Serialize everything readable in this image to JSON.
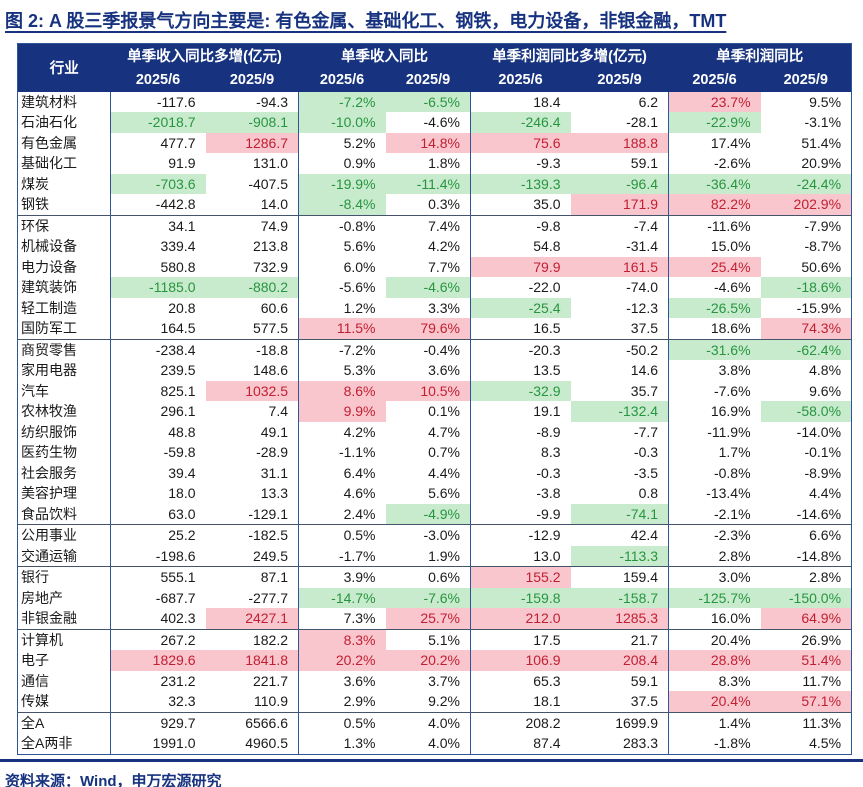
{
  "title": "图 2: A 股三季报景气方向主要是: 有色金属、基础化工、钢铁，电力设备，非银金融，TMT",
  "source": "资料来源：Wind，申万宏源研究",
  "colors": {
    "accent_navy": "#17337F",
    "border_blue": "#2F5597",
    "section_divider": "#44546A",
    "highlight_red_bg": "#F9C6CD",
    "highlight_red_text": "#C11F32",
    "highlight_green_bg": "#C8EBCE",
    "highlight_green_text": "#27953F"
  },
  "table": {
    "industry_header": "行业",
    "groups": [
      {
        "label": "单季收入同比多增(亿元)"
      },
      {
        "label": "单季收入同比"
      },
      {
        "label": "单季利润同比多增(亿元)"
      },
      {
        "label": "单季利润同比"
      }
    ],
    "period_headers": [
      "2025/6",
      "2025/9",
      "2025/6",
      "2025/9",
      "2025/6",
      "2025/9",
      "2025/6",
      "2025/9"
    ],
    "rows": [
      {
        "industry": "建筑材料",
        "values": [
          "-117.6",
          "-94.3",
          "-7.2%",
          "-6.5%",
          "18.4",
          "6.2",
          "23.7%",
          "9.5%"
        ],
        "highlights": "--gg--p-",
        "section_end": false
      },
      {
        "industry": "石油石化",
        "values": [
          "-2018.7",
          "-908.1",
          "-10.0%",
          "-4.6%",
          "-246.4",
          "-28.1",
          "-22.9%",
          "-3.1%"
        ],
        "highlights": "ggg-g-g-",
        "section_end": false
      },
      {
        "industry": "有色金属",
        "values": [
          "477.7",
          "1286.7",
          "5.2%",
          "14.8%",
          "75.6",
          "188.8",
          "17.4%",
          "51.4%"
        ],
        "highlights": "-p-ppp--",
        "section_end": false
      },
      {
        "industry": "基础化工",
        "values": [
          "91.9",
          "131.0",
          "0.9%",
          "1.8%",
          "-9.3",
          "59.1",
          "-2.6%",
          "20.9%"
        ],
        "highlights": "--------",
        "section_end": false
      },
      {
        "industry": "煤炭",
        "values": [
          "-703.6",
          "-407.5",
          "-19.9%",
          "-11.4%",
          "-139.3",
          "-96.4",
          "-36.4%",
          "-24.4%"
        ],
        "highlights": "g-gggggg",
        "section_end": false
      },
      {
        "industry": "钢铁",
        "values": [
          "-442.8",
          "14.0",
          "-8.4%",
          "0.3%",
          "35.0",
          "171.9",
          "82.2%",
          "202.9%"
        ],
        "highlights": "--g--ppp",
        "section_end": true
      },
      {
        "industry": "环保",
        "values": [
          "34.1",
          "74.9",
          "-0.8%",
          "7.4%",
          "-9.8",
          "-7.4",
          "-11.6%",
          "-7.9%"
        ],
        "highlights": "--------",
        "section_end": false
      },
      {
        "industry": "机械设备",
        "values": [
          "339.4",
          "213.8",
          "5.6%",
          "4.2%",
          "54.8",
          "-31.4",
          "15.0%",
          "-8.7%"
        ],
        "highlights": "--------",
        "section_end": false
      },
      {
        "industry": "电力设备",
        "values": [
          "580.8",
          "732.9",
          "6.0%",
          "7.7%",
          "79.9",
          "161.5",
          "25.4%",
          "50.6%"
        ],
        "highlights": "----ppp-",
        "section_end": false
      },
      {
        "industry": "建筑装饰",
        "values": [
          "-1185.0",
          "-880.2",
          "-5.6%",
          "-4.6%",
          "-22.0",
          "-74.0",
          "-4.6%",
          "-18.6%"
        ],
        "highlights": "gg-g---g",
        "section_end": false
      },
      {
        "industry": "轻工制造",
        "values": [
          "20.8",
          "60.6",
          "1.2%",
          "3.3%",
          "-25.4",
          "-12.3",
          "-26.5%",
          "-15.9%"
        ],
        "highlights": "----g-g-",
        "section_end": false
      },
      {
        "industry": "国防军工",
        "values": [
          "164.5",
          "577.5",
          "11.5%",
          "79.6%",
          "16.5",
          "37.5",
          "18.6%",
          "74.3%"
        ],
        "highlights": "--pp---p",
        "section_end": true
      },
      {
        "industry": "商贸零售",
        "values": [
          "-238.4",
          "-18.8",
          "-7.2%",
          "-0.4%",
          "-20.3",
          "-50.2",
          "-31.6%",
          "-62.4%"
        ],
        "highlights": "------gg",
        "section_end": false
      },
      {
        "industry": "家用电器",
        "values": [
          "239.5",
          "148.6",
          "5.3%",
          "3.6%",
          "13.5",
          "14.6",
          "3.8%",
          "4.8%"
        ],
        "highlights": "--------",
        "section_end": false
      },
      {
        "industry": "汽车",
        "values": [
          "825.1",
          "1032.5",
          "8.6%",
          "10.5%",
          "-32.9",
          "35.7",
          "-7.6%",
          "9.6%"
        ],
        "highlights": "-pppg---",
        "section_end": false
      },
      {
        "industry": "农林牧渔",
        "values": [
          "296.1",
          "7.4",
          "9.9%",
          "0.1%",
          "19.1",
          "-132.4",
          "16.9%",
          "-58.0%"
        ],
        "highlights": "--p--g-g",
        "section_end": false
      },
      {
        "industry": "纺织服饰",
        "values": [
          "48.8",
          "49.1",
          "4.2%",
          "4.7%",
          "-8.9",
          "-7.7",
          "-11.9%",
          "-14.0%"
        ],
        "highlights": "--------",
        "section_end": false
      },
      {
        "industry": "医药生物",
        "values": [
          "-59.8",
          "-28.9",
          "-1.1%",
          "0.7%",
          "8.3",
          "-0.3",
          "1.7%",
          "-0.1%"
        ],
        "highlights": "--------",
        "section_end": false
      },
      {
        "industry": "社会服务",
        "values": [
          "39.4",
          "31.1",
          "6.4%",
          "4.4%",
          "-0.3",
          "-3.5",
          "-0.8%",
          "-8.9%"
        ],
        "highlights": "--------",
        "section_end": false
      },
      {
        "industry": "美容护理",
        "values": [
          "18.0",
          "13.3",
          "4.6%",
          "5.6%",
          "-3.8",
          "0.8",
          "-13.4%",
          "4.4%"
        ],
        "highlights": "--------",
        "section_end": false
      },
      {
        "industry": "食品饮料",
        "values": [
          "63.0",
          "-129.1",
          "2.4%",
          "-4.9%",
          "-9.9",
          "-74.1",
          "-2.1%",
          "-14.6%"
        ],
        "highlights": "---g-g--",
        "section_end": true
      },
      {
        "industry": "公用事业",
        "values": [
          "25.2",
          "-182.5",
          "0.5%",
          "-3.0%",
          "-12.9",
          "42.4",
          "-2.3%",
          "6.6%"
        ],
        "highlights": "--------",
        "section_end": false
      },
      {
        "industry": "交通运输",
        "values": [
          "-198.6",
          "249.5",
          "-1.7%",
          "1.9%",
          "13.0",
          "-113.3",
          "2.8%",
          "-14.8%"
        ],
        "highlights": "-----g--",
        "section_end": true
      },
      {
        "industry": "银行",
        "values": [
          "555.1",
          "87.1",
          "3.9%",
          "0.6%",
          "155.2",
          "159.4",
          "3.0%",
          "2.8%"
        ],
        "highlights": "----p---",
        "section_end": false
      },
      {
        "industry": "房地产",
        "values": [
          "-687.7",
          "-277.7",
          "-14.7%",
          "-7.6%",
          "-159.8",
          "-158.7",
          "-125.7%",
          "-150.0%"
        ],
        "highlights": "--gggggg",
        "section_end": false
      },
      {
        "industry": "非银金融",
        "values": [
          "402.3",
          "2427.1",
          "7.3%",
          "25.7%",
          "212.0",
          "1285.3",
          "16.0%",
          "64.9%"
        ],
        "highlights": "-p-ppp-p",
        "section_end": true
      },
      {
        "industry": "计算机",
        "values": [
          "267.2",
          "182.2",
          "8.3%",
          "5.1%",
          "17.5",
          "21.7",
          "20.4%",
          "26.9%"
        ],
        "highlights": "--p-----",
        "section_end": false
      },
      {
        "industry": "电子",
        "values": [
          "1829.6",
          "1841.8",
          "20.2%",
          "20.2%",
          "106.9",
          "208.4",
          "28.8%",
          "51.4%"
        ],
        "highlights": "pppppppp",
        "section_end": false
      },
      {
        "industry": "通信",
        "values": [
          "231.2",
          "221.7",
          "3.6%",
          "3.7%",
          "65.3",
          "59.1",
          "8.3%",
          "11.7%"
        ],
        "highlights": "--------",
        "section_end": false
      },
      {
        "industry": "传媒",
        "values": [
          "32.3",
          "110.9",
          "2.9%",
          "9.2%",
          "18.1",
          "37.5",
          "20.4%",
          "57.1%"
        ],
        "highlights": "------pp",
        "section_end": true
      },
      {
        "industry": "全A",
        "values": [
          "929.7",
          "6566.6",
          "0.5%",
          "4.0%",
          "208.2",
          "1699.9",
          "1.4%",
          "11.3%"
        ],
        "highlights": "--------",
        "section_end": false
      },
      {
        "industry": "全A两非",
        "values": [
          "1991.0",
          "4960.5",
          "1.3%",
          "4.0%",
          "87.4",
          "283.3",
          "-1.8%",
          "4.5%"
        ],
        "highlights": "--------",
        "section_end": false
      }
    ]
  }
}
